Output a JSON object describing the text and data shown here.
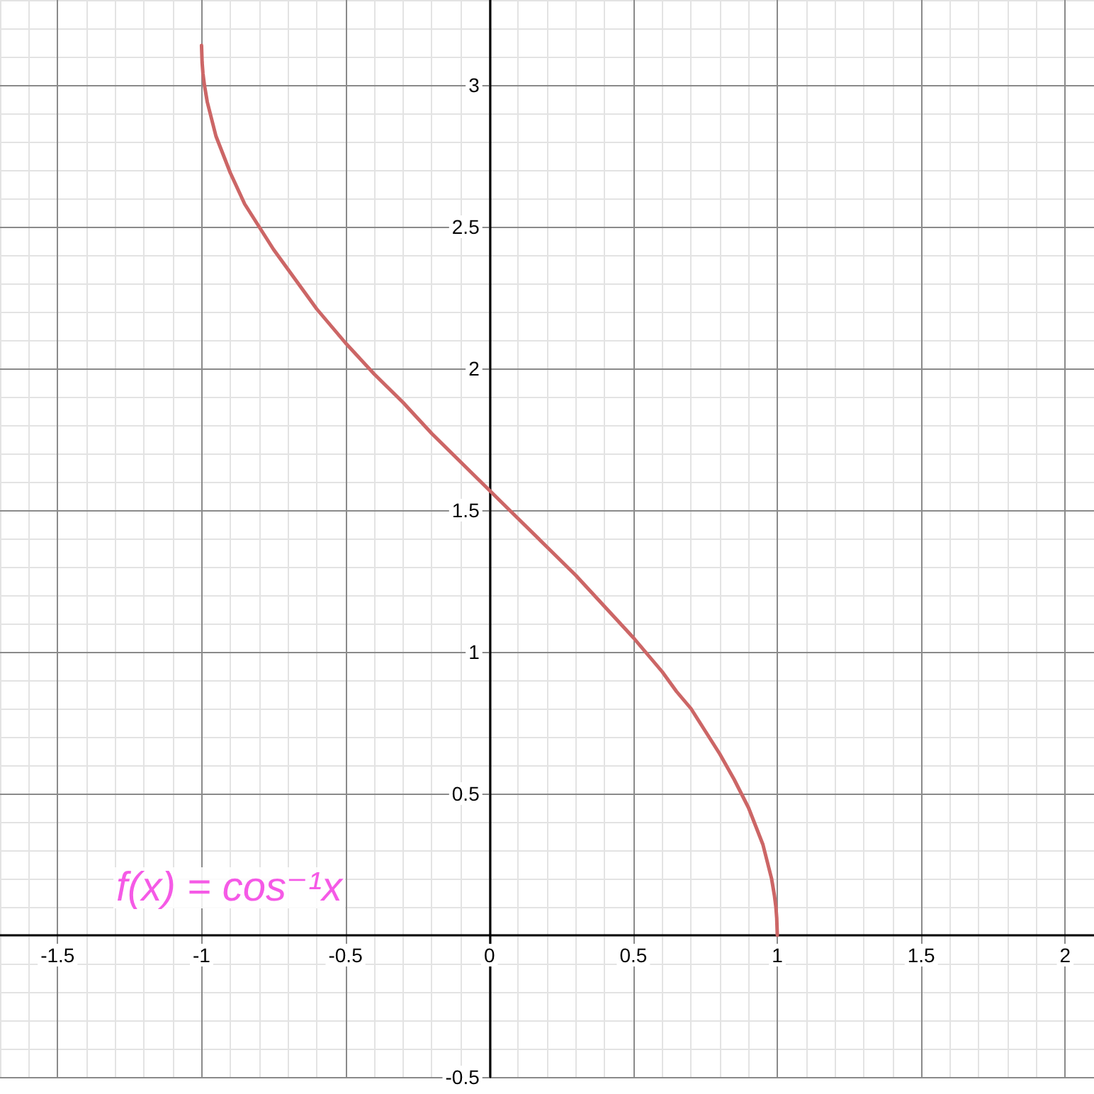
{
  "chart_data": {
    "type": "line",
    "x": [
      -1,
      -0.998,
      -0.995,
      -0.99,
      -0.98,
      -0.97,
      -0.95,
      -0.9,
      -0.85,
      -0.8,
      -0.75,
      -0.7,
      -0.65,
      -0.6,
      -0.5,
      -0.4,
      -0.3,
      -0.2,
      -0.1,
      0,
      0.1,
      0.2,
      0.3,
      0.4,
      0.5,
      0.6,
      0.65,
      0.7,
      0.75,
      0.8,
      0.85,
      0.9,
      0.95,
      0.97,
      0.98,
      0.99,
      0.995,
      0.998,
      1
    ],
    "series": [
      {
        "color": "#cc6666",
        "values": [
          3.14,
          3.08,
          3.04,
          3.0,
          2.94,
          2.9,
          2.82,
          2.69,
          2.58,
          2.5,
          2.42,
          2.35,
          2.28,
          2.21,
          2.09,
          1.98,
          1.88,
          1.77,
          1.67,
          1.57,
          1.47,
          1.37,
          1.27,
          1.16,
          1.05,
          0.93,
          0.86,
          0.8,
          0.72,
          0.64,
          0.55,
          0.45,
          0.32,
          0.24,
          0.2,
          0.14,
          0.1,
          0.06,
          0
        ]
      }
    ],
    "xlim": [
      -1.7,
      2.1
    ],
    "ylim": [
      -0.5,
      3.3
    ],
    "xticks": [
      -1.5,
      -1,
      -0.5,
      0,
      0.5,
      1,
      1.5,
      2
    ],
    "yticks": [
      -0.5,
      0.5,
      1,
      1.5,
      2,
      2.5,
      3
    ],
    "grid": true,
    "line_style": "solid",
    "annotations": [
      "f(x) = cos⁻¹x"
    ]
  }
}
